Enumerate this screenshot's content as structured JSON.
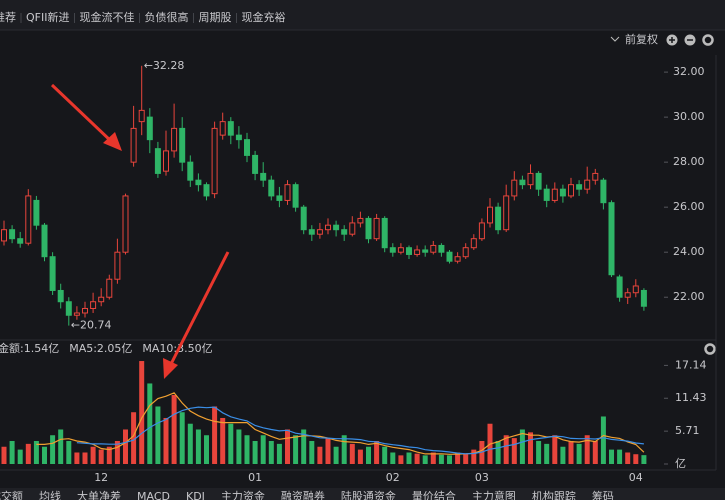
{
  "tags": [
    {
      "text": "推荐",
      "color": "#e8453c"
    },
    {
      "text": "QFII新进",
      "color": "#e8453c"
    },
    {
      "text": "现金流不佳",
      "color": "#3cbc6c"
    },
    {
      "text": "负债很高",
      "color": "#3cbc6c"
    },
    {
      "text": "周期股",
      "color": "#f0a030"
    },
    {
      "text": "现金充裕",
      "color": "#e8453c"
    }
  ],
  "toolbar": {
    "adjust": "前复权"
  },
  "tabs": [
    "成交额",
    "均线",
    "大单净差",
    "MACD",
    "KDJ",
    "主力资金",
    "融资融券",
    "陆股通资金",
    "量价结合",
    "主力意图",
    "机构跟踪",
    "筹码"
  ],
  "chart_data": [
    {
      "type": "candlestick",
      "up_color": "#e8453c",
      "down_color": "#2fb567",
      "categories": [
        null,
        null,
        null,
        null,
        null,
        null,
        null,
        null,
        null,
        null,
        null,
        null,
        "12",
        null,
        null,
        null,
        null,
        null,
        null,
        null,
        null,
        null,
        null,
        null,
        null,
        null,
        null,
        null,
        null,
        null,
        null,
        "01",
        null,
        null,
        null,
        null,
        null,
        null,
        null,
        null,
        null,
        null,
        null,
        null,
        null,
        null,
        null,
        null,
        "02",
        null,
        null,
        null,
        null,
        null,
        null,
        null,
        null,
        null,
        null,
        "03",
        null,
        null,
        null,
        null,
        null,
        null,
        null,
        null,
        null,
        null,
        null,
        null,
        null,
        null,
        null,
        null,
        null,
        null,
        "04",
        null
      ],
      "open": [
        24.5,
        25.0,
        24.6,
        24.4,
        26.3,
        25.2,
        23.8,
        22.3,
        21.8,
        21.2,
        21.3,
        21.5,
        21.8,
        22.0,
        22.8,
        24.0,
        28.0,
        29.8,
        30.0,
        28.6,
        27.6,
        28.5,
        29.5,
        28.0,
        27.2,
        27.0,
        26.6,
        29.2,
        29.8,
        29.2,
        29.0,
        28.3,
        27.5,
        27.2,
        26.5,
        26.3,
        27.0,
        26.0,
        25.0,
        24.8,
        25.0,
        25.2,
        25.0,
        24.8,
        25.3,
        25.5,
        24.6,
        25.5,
        24.2,
        24.0,
        24.2,
        23.9,
        24.1,
        24.0,
        24.3,
        24.0,
        23.6,
        23.8,
        24.2,
        24.6,
        25.3,
        26.0,
        25.0,
        26.5,
        27.2,
        27.0,
        27.5,
        26.8,
        26.3,
        26.8,
        26.5,
        27.0,
        26.8,
        27.2,
        27.2,
        26.2,
        22.9,
        22.0,
        22.2,
        22.3
      ],
      "high": [
        25.4,
        25.2,
        24.9,
        26.8,
        26.5,
        25.3,
        24.0,
        22.6,
        22.0,
        21.6,
        21.8,
        22.2,
        22.4,
        23.0,
        24.6,
        26.6,
        30.5,
        32.28,
        30.4,
        28.9,
        29.4,
        30.6,
        30.0,
        28.3,
        27.5,
        27.1,
        29.8,
        30.2,
        30.0,
        29.6,
        29.3,
        28.5,
        28.0,
        27.4,
        26.9,
        27.2,
        27.1,
        26.1,
        25.2,
        25.3,
        25.5,
        25.4,
        25.2,
        25.6,
        25.8,
        25.6,
        25.7,
        25.6,
        24.4,
        24.4,
        24.3,
        24.3,
        24.3,
        24.5,
        24.4,
        24.1,
        24.0,
        24.4,
        24.8,
        25.5,
        26.4,
        26.2,
        27.0,
        27.6,
        27.4,
        27.9,
        27.6,
        27.0,
        27.1,
        27.0,
        27.3,
        27.2,
        27.8,
        27.7,
        27.3,
        26.3,
        23.0,
        22.4,
        22.8,
        22.4
      ],
      "low": [
        24.3,
        24.4,
        24.2,
        24.3,
        25.0,
        23.6,
        22.1,
        21.5,
        20.74,
        21.0,
        21.1,
        21.3,
        21.6,
        21.9,
        22.6,
        23.9,
        27.8,
        29.2,
        28.4,
        27.3,
        27.4,
        28.2,
        27.6,
        26.9,
        26.7,
        26.3,
        26.4,
        29.0,
        28.8,
        28.6,
        28.0,
        27.2,
        26.9,
        26.3,
        26.0,
        26.1,
        25.8,
        24.8,
        24.5,
        24.6,
        24.8,
        24.7,
        24.5,
        24.7,
        25.1,
        24.4,
        24.5,
        24.0,
        23.8,
        23.9,
        23.7,
        23.8,
        23.8,
        23.9,
        23.8,
        23.5,
        23.5,
        23.7,
        24.1,
        24.5,
        25.1,
        24.8,
        24.9,
        26.3,
        26.8,
        26.8,
        26.5,
        26.0,
        26.2,
        26.2,
        26.4,
        26.5,
        26.6,
        27.0,
        25.9,
        22.9,
        21.8,
        21.7,
        22.0,
        21.4
      ],
      "close": [
        25.0,
        24.6,
        24.4,
        26.5,
        25.2,
        23.8,
        22.3,
        21.8,
        21.2,
        21.3,
        21.5,
        21.8,
        22.0,
        22.8,
        24.0,
        26.5,
        29.5,
        30.3,
        29.0,
        27.5,
        28.5,
        29.5,
        28.0,
        27.2,
        27.0,
        26.5,
        29.5,
        29.8,
        29.2,
        29.0,
        28.3,
        27.5,
        27.2,
        26.5,
        26.3,
        27.0,
        26.0,
        25.0,
        24.8,
        25.0,
        25.2,
        25.0,
        24.8,
        25.3,
        25.5,
        24.6,
        25.5,
        24.2,
        24.0,
        24.2,
        23.9,
        24.1,
        24.0,
        24.3,
        24.0,
        23.6,
        23.8,
        24.2,
        24.6,
        25.3,
        26.0,
        25.0,
        26.5,
        27.2,
        27.0,
        27.5,
        26.8,
        26.3,
        26.8,
        26.5,
        27.0,
        26.8,
        27.2,
        27.5,
        26.2,
        23.0,
        22.0,
        22.2,
        22.5,
        21.6
      ],
      "ylim": [
        20.1,
        32.76
      ],
      "yticks": [
        {
          "value": 22,
          "label": "22.00"
        },
        {
          "value": 24,
          "label": "24.00"
        },
        {
          "value": 26,
          "label": "26.00"
        },
        {
          "value": 28,
          "label": "28.00"
        },
        {
          "value": 30,
          "label": "30.00"
        },
        {
          "value": 32,
          "label": "32.00"
        }
      ],
      "annotations": [
        {
          "text": "←32.28"
        },
        {
          "text": "←20.74"
        }
      ]
    },
    {
      "type": "bar",
      "series": [
        {
          "name": "金额:1.54亿",
          "color": "#dddddd",
          "values": [
            3,
            4,
            2.5,
            3.5,
            4,
            3,
            5,
            6,
            4,
            2,
            2,
            3,
            2.5,
            3,
            4,
            6,
            9,
            17.9,
            14,
            10,
            8,
            12,
            9,
            7,
            6,
            5,
            10,
            8,
            7,
            6,
            5,
            4,
            5,
            4,
            3.5,
            6,
            5,
            6,
            4,
            3,
            4.5,
            3,
            5,
            3.5,
            2.5,
            3,
            4,
            3,
            2,
            1.5,
            2,
            1.8,
            1.5,
            2,
            1.6,
            1.5,
            2,
            1.8,
            2.5,
            4,
            7,
            4,
            5,
            4.5,
            6,
            5.5,
            4,
            3.5,
            5,
            3,
            4,
            3.5,
            5,
            4,
            8.26,
            2.5,
            2.5,
            2,
            1.7,
            1.54
          ]
        },
        {
          "name": "MA5:2.05亿",
          "color": "#f0a030",
          "values": [
            null,
            null,
            null,
            null,
            3.4,
            3.4,
            3.6,
            4.3,
            4.4,
            4.0,
            3.8,
            3.4,
            2.7,
            2.5,
            2.9,
            3.7,
            4.9,
            7.98,
            10.18,
            11.38,
            11.78,
            12.38,
            10.6,
            9.2,
            8.4,
            7.8,
            7.4,
            7.2,
            7.2,
            7.2,
            7.2,
            6.0,
            5.4,
            4.8,
            4.3,
            4.5,
            4.7,
            4.9,
            4.9,
            4.8,
            4.5,
            4.1,
            3.9,
            3.8,
            3.7,
            3.4,
            3.6,
            3.2,
            2.9,
            2.7,
            2.5,
            2.06,
            1.76,
            1.76,
            1.78,
            1.68,
            1.72,
            1.78,
            1.88,
            2.36,
            3.46,
            3.86,
            4.5,
            4.9,
            5.3,
            5.0,
            5.0,
            4.7,
            4.8,
            4.2,
            3.9,
            3.8,
            4.1,
            3.9,
            4.95,
            4.65,
            4.45,
            3.85,
            3.39,
            2.05
          ]
        },
        {
          "name": "MA10:3.50亿",
          "color": "#3a8ee6",
          "values": [
            null,
            null,
            null,
            null,
            null,
            null,
            null,
            null,
            null,
            3.7,
            3.6,
            3.5,
            3.5,
            3.45,
            3.45,
            3.75,
            4.15,
            5.34,
            6.34,
            7.14,
            7.74,
            8.64,
            9.29,
            9.69,
            9.89,
            9.79,
            9.89,
            8.9,
            8.2,
            7.8,
            7.5,
            6.7,
            6.3,
            6.0,
            5.75,
            5.85,
            5.35,
            5.15,
            4.85,
            4.55,
            4.5,
            4.4,
            4.4,
            4.35,
            4.25,
            3.95,
            3.85,
            3.55,
            3.35,
            3.2,
            2.95,
            2.83,
            2.48,
            2.33,
            2.24,
            2.09,
            1.89,
            1.77,
            1.82,
            2.07,
            2.57,
            2.79,
            3.14,
            3.39,
            3.83,
            4.23,
            4.43,
            4.6,
            4.85,
            4.75,
            4.45,
            4.4,
            4.4,
            4.35,
            4.58,
            4.28,
            4.13,
            3.98,
            3.65,
            3.5
          ]
        }
      ],
      "ylim": [
        0,
        18.6
      ],
      "yticks": [
        {
          "value": 0,
          "label": "亿"
        },
        5.71,
        11.43,
        17.14
      ]
    }
  ]
}
